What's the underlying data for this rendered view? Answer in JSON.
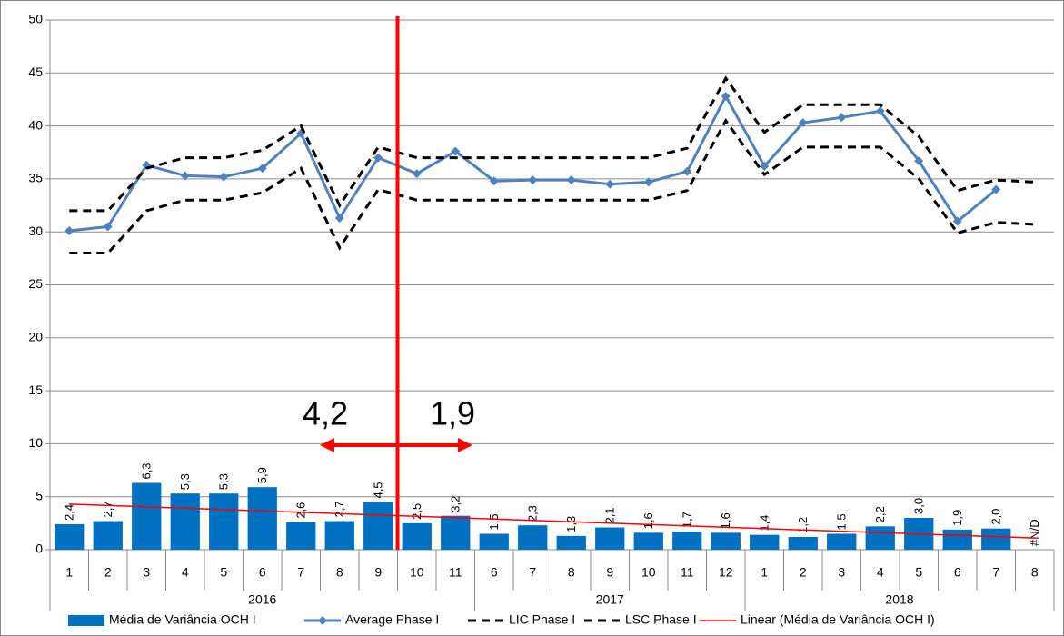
{
  "chart_data": {
    "type": "combo",
    "categories": [
      "1",
      "2",
      "3",
      "4",
      "5",
      "6",
      "7",
      "8",
      "9",
      "10",
      "11",
      "6",
      "7",
      "8",
      "9",
      "10",
      "11",
      "12",
      "1",
      "2",
      "3",
      "4",
      "5",
      "6",
      "7",
      "8"
    ],
    "groups": [
      {
        "label": "2016",
        "size": 11
      },
      {
        "label": "2017",
        "size": 7
      },
      {
        "label": "2018",
        "size": 8
      }
    ],
    "series": [
      {
        "name": "Média de Variância OCH I",
        "kind": "bar",
        "color": "#0070c0",
        "values": [
          2.4,
          2.7,
          6.3,
          5.3,
          5.3,
          5.9,
          2.6,
          2.7,
          4.5,
          2.5,
          3.2,
          1.5,
          2.3,
          1.3,
          2.1,
          1.6,
          1.7,
          1.6,
          1.4,
          1.2,
          1.5,
          2.2,
          3.0,
          1.9,
          2.0,
          null
        ],
        "value_labels": [
          "2,4",
          "2,7",
          "6,3",
          "5,3",
          "5,3",
          "5,9",
          "2,6",
          "2,7",
          "4,5",
          "2,5",
          "3,2",
          "1,5",
          "2,3",
          "1,3",
          "2,1",
          "1,6",
          "1,7",
          "1,6",
          "1,4",
          "1,2",
          "1,5",
          "2,2",
          "3,0",
          "1,9",
          "2,0",
          "#N/D"
        ]
      },
      {
        "name": "Average Phase I",
        "kind": "line-marker",
        "color": "#4f81bd",
        "values": [
          30.1,
          30.5,
          36.3,
          35.3,
          35.2,
          36.0,
          39.3,
          31.3,
          37.0,
          35.5,
          37.6,
          34.8,
          34.9,
          34.9,
          34.5,
          34.7,
          35.7,
          42.8,
          36.2,
          40.3,
          40.8,
          41.4,
          36.7,
          31.0,
          34.0,
          null
        ]
      },
      {
        "name": "LIC Phase I",
        "kind": "dashed",
        "color": "#000000",
        "values": [
          28,
          28,
          32,
          33,
          33,
          33.7,
          36,
          28.5,
          34,
          33,
          33,
          33,
          33,
          33,
          33,
          33,
          33.9,
          40.5,
          35.4,
          38,
          38,
          38,
          35,
          29.9,
          30.9,
          30.7
        ]
      },
      {
        "name": "LSC Phase I",
        "kind": "dashed",
        "color": "#000000",
        "values": [
          32,
          32,
          36,
          37,
          37,
          37.7,
          40,
          32.5,
          38,
          37,
          37,
          37,
          37,
          37,
          37,
          37,
          37.9,
          44.5,
          39.4,
          42,
          42,
          42,
          39,
          33.9,
          34.9,
          34.7
        ]
      }
    ],
    "trend": {
      "name": "Linear (Média de Variância OCH I)",
      "color": "#ff0000",
      "values": [
        4.3,
        1.1
      ]
    },
    "annotations": [
      "4,2",
      "1,9"
    ],
    "divider_color": "#ff0000",
    "ylim": [
      0,
      50
    ],
    "yticks": [
      0,
      5,
      10,
      15,
      20,
      25,
      30,
      35,
      40,
      45,
      50
    ],
    "grid": true
  }
}
